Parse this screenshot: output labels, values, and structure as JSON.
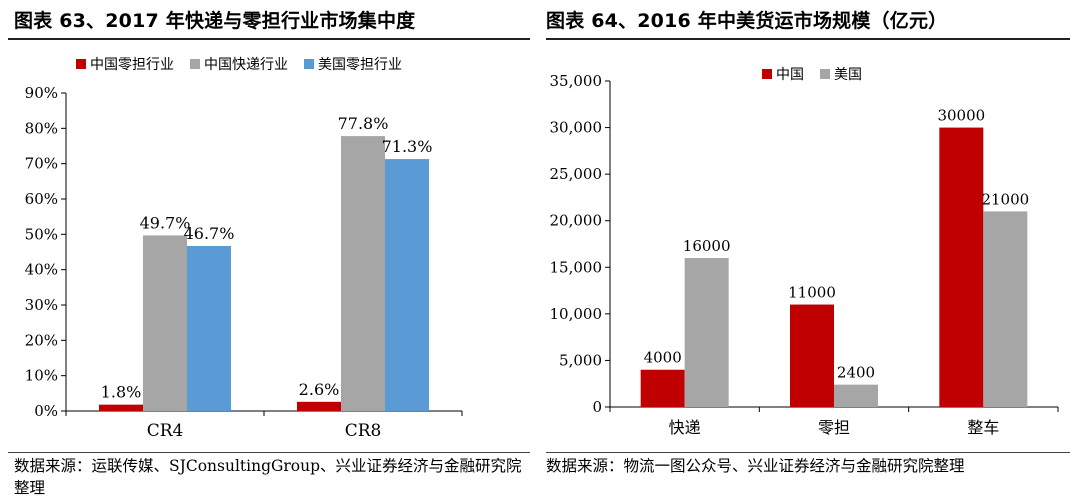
{
  "left_panel": {
    "title": "图表 63、2017 年快递与零担行业市场集中度",
    "source": "数据来源：运联传媒、SJConsultingGroup、兴业证券经济与金融研究院整理",
    "legend": [
      {
        "label": "中国零担行业",
        "color": "#c00000"
      },
      {
        "label": "中国快递行业",
        "color": "#a6a6a6"
      },
      {
        "label": "美国零担行业",
        "color": "#5b9bd5"
      }
    ]
  },
  "right_panel": {
    "title": "图表 64、2016 年中美货运市场规模（亿元）",
    "source": "数据来源：物流一图公众号、兴业证券经济与金融研究院整理",
    "legend": [
      {
        "label": "中国",
        "color": "#c00000"
      },
      {
        "label": "美国",
        "color": "#a6a6a6"
      }
    ]
  },
  "chart_data": [
    {
      "type": "bar",
      "title": "图表 63、2017 年快递与零担行业市场集中度",
      "categories": [
        "CR4",
        "CR8"
      ],
      "series": [
        {
          "name": "中国零担行业",
          "values": [
            1.8,
            2.6
          ],
          "labels": [
            "1.8%",
            "2.6%"
          ],
          "color": "#c00000"
        },
        {
          "name": "中国快递行业",
          "values": [
            49.7,
            77.8
          ],
          "labels": [
            "49.7%",
            "77.8%"
          ],
          "color": "#a6a6a6"
        },
        {
          "name": "美国零担行业",
          "values": [
            46.7,
            71.3
          ],
          "labels": [
            "46.7%",
            "71.3%"
          ],
          "color": "#5b9bd5"
        }
      ],
      "ylim": [
        0,
        90
      ],
      "yticks": [
        "0%",
        "10%",
        "20%",
        "30%",
        "40%",
        "50%",
        "60%",
        "70%",
        "80%",
        "90%"
      ],
      "xlabel": "",
      "ylabel": "",
      "grid": false,
      "legend_position": "top"
    },
    {
      "type": "bar",
      "title": "图表 64、2016 年中美货运市场规模（亿元）",
      "categories": [
        "快递",
        "零担",
        "整车"
      ],
      "series": [
        {
          "name": "中国",
          "values": [
            4000,
            11000,
            30000
          ],
          "labels": [
            "4000",
            "11000",
            "30000"
          ],
          "color": "#c00000"
        },
        {
          "name": "美国",
          "values": [
            16000,
            2400,
            21000
          ],
          "labels": [
            "16000",
            "2400",
            "21000"
          ],
          "color": "#a6a6a6"
        }
      ],
      "ylim": [
        0,
        35000
      ],
      "yticks": [
        "0",
        "5,000",
        "10,000",
        "15,000",
        "20,000",
        "25,000",
        "30,000",
        "35,000"
      ],
      "xlabel": "",
      "ylabel": "",
      "grid": false,
      "legend_position": "top"
    }
  ]
}
